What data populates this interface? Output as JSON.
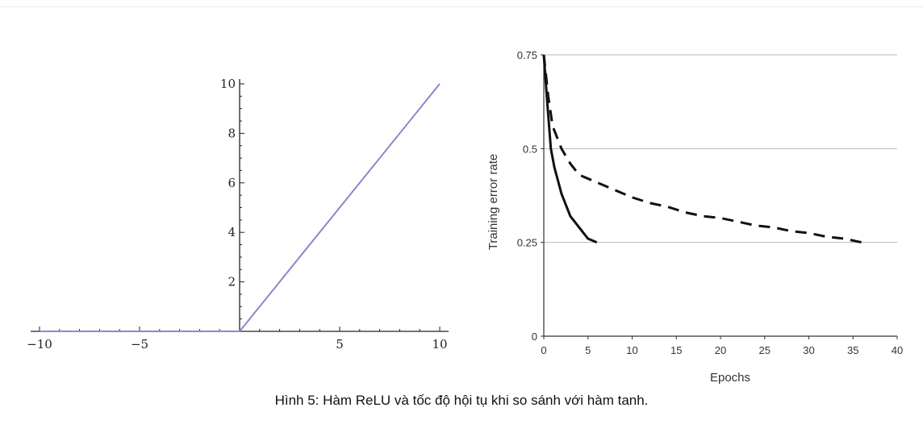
{
  "caption": "Hình 5: Hàm ReLU và tốc độ hội tụ khi so sánh với hàm tanh.",
  "chart_data": [
    {
      "type": "line",
      "title": "",
      "xlabel": "",
      "ylabel": "",
      "xlim": [
        -10,
        10
      ],
      "ylim": [
        0,
        10
      ],
      "x_ticks": [
        -10,
        -5,
        5,
        10
      ],
      "x_tick_labels": [
        "−10",
        "−5",
        "5",
        "10"
      ],
      "y_ticks": [
        2,
        4,
        6,
        8,
        10
      ],
      "y_tick_labels": [
        "2",
        "4",
        "6",
        "8",
        "10"
      ],
      "grid": false,
      "color": "#8888cc",
      "series": [
        {
          "x": [
            -10,
            0,
            10
          ],
          "y": [
            0,
            0,
            10
          ]
        }
      ]
    },
    {
      "type": "line",
      "title": "",
      "xlabel": "Epochs",
      "ylabel": "Training error rate",
      "xlim": [
        0,
        40
      ],
      "ylim": [
        0,
        0.75
      ],
      "x_ticks": [
        0,
        5,
        10,
        15,
        20,
        25,
        30,
        35,
        40
      ],
      "x_tick_labels": [
        "0",
        "5",
        "10",
        "15",
        "20",
        "25",
        "30",
        "35",
        "40"
      ],
      "y_ticks": [
        0,
        0.25,
        0.5,
        0.75
      ],
      "y_tick_labels": [
        "0",
        "0.25",
        "0.5",
        "0.75"
      ],
      "grid": "horizontal",
      "legend": "none",
      "series": [
        {
          "style": "solid",
          "x": [
            0,
            0.4,
            0.8,
            1.2,
            2,
            3,
            4,
            5,
            6
          ],
          "y": [
            0.75,
            0.62,
            0.5,
            0.45,
            0.38,
            0.32,
            0.29,
            0.26,
            0.25
          ]
        },
        {
          "style": "dashed",
          "x": [
            0,
            0.5,
            1,
            2,
            3,
            4,
            5,
            6,
            8,
            10,
            12,
            14,
            16,
            18,
            20,
            22,
            24,
            26,
            28,
            30,
            32,
            34,
            36
          ],
          "y": [
            0.75,
            0.64,
            0.56,
            0.5,
            0.46,
            0.43,
            0.42,
            0.41,
            0.39,
            0.37,
            0.355,
            0.345,
            0.33,
            0.32,
            0.315,
            0.305,
            0.295,
            0.29,
            0.28,
            0.275,
            0.265,
            0.26,
            0.25
          ]
        }
      ]
    }
  ]
}
